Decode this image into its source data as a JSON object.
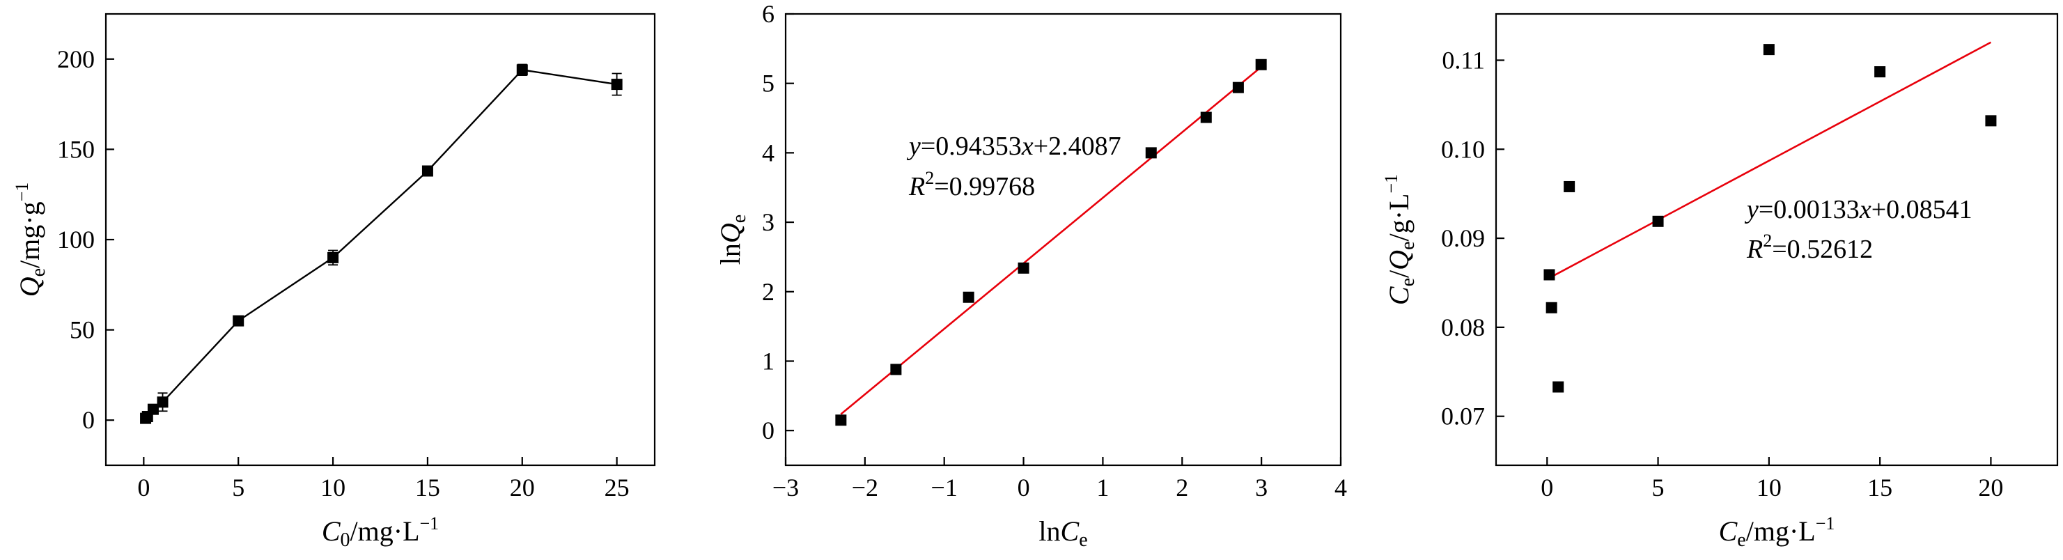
{
  "colors": {
    "fit_line": "#e8000b",
    "markers": "#000000",
    "connect_line": "#000000"
  },
  "chart_data": [
    {
      "type": "line",
      "xlabel": {
        "main": "C",
        "sub": "0",
        "unit": "/mg·L",
        "sup": "−1"
      },
      "ylabel": {
        "main": "Q",
        "sub": "e",
        "unit": "/mg·g",
        "sup": "−1"
      },
      "xlim": [
        -2,
        27
      ],
      "ylim": [
        -25,
        225
      ],
      "xticks": [
        0,
        5,
        10,
        15,
        20,
        25
      ],
      "xtick_labels": [
        "0",
        "5",
        "10",
        "15",
        "20",
        "25"
      ],
      "yticks": [
        0,
        50,
        100,
        150,
        200
      ],
      "ytick_labels": [
        "0",
        "50",
        "100",
        "150",
        "200"
      ],
      "grid": false,
      "series": [
        {
          "marker": "square",
          "x": [
            0.1,
            0.2,
            0.5,
            1,
            5,
            10,
            15,
            20,
            25
          ],
          "y": [
            1,
            2,
            6,
            10,
            55,
            90,
            138,
            194,
            186
          ],
          "err": [
            1,
            1,
            2,
            5,
            1.5,
            4,
            1.5,
            3,
            6
          ]
        }
      ]
    },
    {
      "type": "scatter",
      "xlabel": {
        "main": "ln",
        "italic": "C",
        "sub": "e"
      },
      "ylabel": {
        "main": "ln",
        "italic": "Q",
        "sub": "e"
      },
      "xlim": [
        -3,
        4
      ],
      "ylim": [
        -0.5,
        6
      ],
      "xticks": [
        -3,
        -2,
        -1,
        0,
        1,
        2,
        3,
        4
      ],
      "xtick_labels": [
        "−3",
        "−2",
        "−1",
        "0",
        "1",
        "2",
        "3",
        "4"
      ],
      "yticks": [
        0,
        1,
        2,
        3,
        4,
        5,
        6
      ],
      "ytick_labels": [
        "0",
        "1",
        "2",
        "3",
        "4",
        "5",
        "6"
      ],
      "grid": false,
      "series": [
        {
          "marker": "square",
          "x": [
            -2.303,
            -1.609,
            -0.693,
            0,
            1.609,
            2.303,
            2.708,
            2.996
          ],
          "y": [
            0.15,
            0.88,
            1.92,
            2.34,
            4.0,
            4.51,
            4.94,
            5.27
          ]
        }
      ],
      "fit": {
        "slope": 0.94353,
        "intercept": 2.4087,
        "x_range": [
          -2.303,
          2.996
        ]
      },
      "annotation": {
        "equation": "=0.94353x+2.4087",
        "eq_y": "y",
        "eq_x": "x",
        "r2_label": "R",
        "r2_sup": "2",
        "r2_value": "=0.99768"
      }
    },
    {
      "type": "scatter",
      "xlabel": {
        "main": "C",
        "sub": "e",
        "unit": "/mg·L",
        "sup": "−1"
      },
      "ylabel": {
        "main": "C",
        "sub": "e",
        "mid": "/",
        "main2": "Q",
        "sub2": "e",
        "unit": "/g·L",
        "sup": "−1"
      },
      "xlim": [
        -2.3,
        23
      ],
      "ylim": [
        0.0645,
        0.1152
      ],
      "xticks": [
        0,
        5,
        10,
        15,
        20
      ],
      "xtick_labels": [
        "0",
        "5",
        "10",
        "15",
        "20"
      ],
      "yticks": [
        0.07,
        0.08,
        0.09,
        0.1,
        0.11
      ],
      "ytick_labels": [
        "0.07",
        "0.08",
        "0.09",
        "0.10",
        "0.11"
      ],
      "grid": false,
      "series": [
        {
          "marker": "square",
          "x": [
            0.1,
            0.2,
            0.5,
            1,
            5,
            10,
            15,
            20
          ],
          "y": [
            0.0859,
            0.0822,
            0.0733,
            0.0958,
            0.0919,
            0.1112,
            0.1087,
            0.1032
          ]
        }
      ],
      "fit": {
        "slope": 0.00133,
        "intercept": 0.08541,
        "x_range": [
          0.1,
          20
        ]
      },
      "annotation": {
        "equation": "=0.00133x+0.08541",
        "eq_y": "y",
        "eq_x": "x",
        "r2_label": "R",
        "r2_sup": "2",
        "r2_value": "=0.52612"
      }
    }
  ]
}
